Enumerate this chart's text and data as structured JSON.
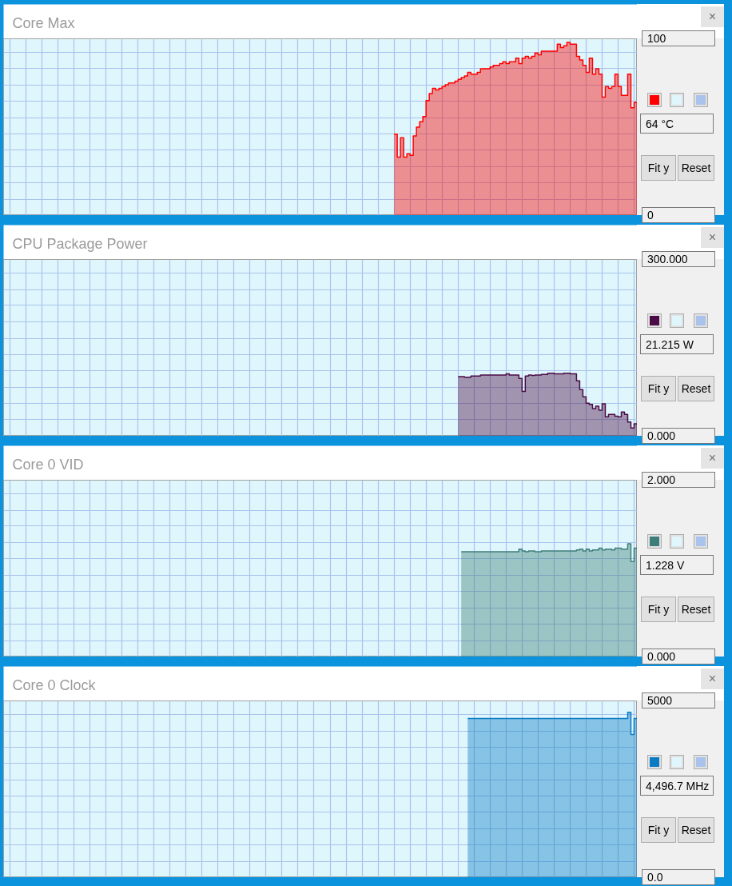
{
  "chart_data": [
    {
      "type": "area",
      "title": "Core Max",
      "tick_labels": "y",
      "grid": true,
      "ylim": [
        0,
        100
      ],
      "yticks": [
        0,
        {
          "value": 9.2,
          "label": null
        },
        {
          "value": 18.5,
          "label": null
        },
        {
          "value": 27.7,
          "label": null
        },
        {
          "value": 36.9,
          "label": null
        },
        {
          "value": 46.2,
          "label": null
        },
        {
          "value": 55.4,
          "label": null
        },
        {
          "value": 64.6,
          "label": null
        },
        {
          "value": 73.8,
          "label": null
        },
        {
          "value": 83.1,
          "label": null
        },
        {
          "value": 92.3,
          "label": null
        },
        100
      ],
      "categories": [
        null,
        null,
        null,
        null,
        null,
        null,
        null,
        null,
        null,
        null,
        null,
        null,
        null,
        null,
        null,
        null,
        null,
        null,
        null,
        null,
        null,
        null,
        null,
        null,
        null,
        null,
        null,
        null,
        null,
        null,
        null,
        null,
        null,
        null,
        null,
        null,
        null,
        null,
        null,
        null,
        null,
        null,
        null,
        null,
        null,
        null,
        null,
        null,
        null,
        null,
        null,
        null,
        null,
        null,
        null,
        null,
        null,
        null,
        null,
        null,
        null,
        null,
        null,
        null,
        null,
        null,
        null,
        null,
        null,
        null,
        null,
        null,
        null,
        null,
        null,
        null,
        null,
        null,
        null,
        null,
        null,
        null,
        null,
        null,
        null,
        null,
        null,
        null,
        null,
        null,
        null,
        null,
        null,
        null,
        null,
        null,
        null,
        null,
        null,
        null,
        null,
        null,
        null,
        null,
        null,
        null,
        null,
        null,
        null,
        null,
        null,
        null,
        null,
        null,
        null,
        null,
        null,
        null,
        null,
        null,
        null,
        null,
        null,
        null,
        null,
        null,
        null,
        null,
        null,
        null,
        null,
        null,
        null,
        null,
        null,
        null,
        null,
        null,
        null,
        null,
        null,
        null,
        null,
        null,
        null,
        null,
        null,
        null,
        null,
        null,
        null,
        null,
        null,
        null,
        null,
        null,
        null,
        null,
        null,
        null,
        null,
        null,
        null,
        null,
        null,
        null,
        null,
        null,
        null,
        null,
        null,
        null,
        null,
        null,
        null,
        null,
        null,
        null,
        null,
        null,
        null,
        null,
        null,
        null,
        null,
        null,
        null,
        null,
        null,
        null,
        null,
        null,
        null,
        null,
        null,
        null,
        null,
        null
      ],
      "series": [
        {
          "color": "#ff0000",
          "values": [
            null,
            null,
            null,
            null,
            null,
            null,
            null,
            null,
            null,
            null,
            null,
            null,
            null,
            null,
            null,
            null,
            null,
            null,
            null,
            null,
            null,
            null,
            null,
            null,
            null,
            null,
            null,
            null,
            null,
            null,
            null,
            null,
            null,
            null,
            null,
            null,
            null,
            null,
            null,
            null,
            null,
            null,
            null,
            null,
            null,
            null,
            null,
            null,
            null,
            null,
            null,
            null,
            null,
            null,
            null,
            null,
            null,
            null,
            null,
            null,
            null,
            null,
            null,
            null,
            null,
            null,
            null,
            null,
            null,
            null,
            null,
            null,
            null,
            null,
            null,
            null,
            null,
            null,
            null,
            null,
            null,
            null,
            null,
            null,
            null,
            null,
            null,
            null,
            null,
            null,
            null,
            null,
            null,
            null,
            null,
            null,
            null,
            null,
            null,
            null,
            null,
            null,
            null,
            null,
            null,
            null,
            null,
            null,
            null,
            null,
            null,
            null,
            null,
            null,
            null,
            null,
            null,
            null,
            null,
            null,
            null,
            null,
            46,
            33,
            44,
            33,
            35,
            34,
            45,
            50,
            53,
            56,
            65,
            69,
            72,
            71,
            72,
            73,
            74,
            75,
            75,
            76,
            77,
            78,
            79,
            81,
            80,
            80,
            81,
            83,
            83,
            83,
            84,
            85,
            85,
            86,
            87,
            86,
            87,
            87,
            89,
            86,
            89,
            90,
            89,
            90,
            92,
            91,
            93,
            93,
            93,
            93,
            93,
            97,
            95,
            96,
            98,
            97,
            97,
            90,
            88,
            85,
            81,
            89,
            80,
            83,
            80,
            67,
            73,
            72,
            73,
            80,
            73,
            68,
            68,
            80,
            61,
            64
          ]
        }
      ],
      "annotations": [
        "64 °C",
        "Fit y",
        "Reset",
        "×"
      ]
    },
    {
      "type": "area",
      "title": "CPU Package Power",
      "tick_labels": "y",
      "grid": true,
      "ylim": [
        0,
        300
      ],
      "yticks": [
        {
          "value": 0,
          "label": "0.000"
        },
        {
          "value": 28,
          "label": null
        },
        {
          "value": 55,
          "label": null
        },
        {
          "value": 83,
          "label": null
        },
        {
          "value": 111,
          "label": null
        },
        {
          "value": 138,
          "label": null
        },
        {
          "value": 166,
          "label": null
        },
        {
          "value": 194,
          "label": null
        },
        {
          "value": 222,
          "label": null
        },
        {
          "value": 249,
          "label": null
        },
        {
          "value": 277,
          "label": null
        },
        {
          "value": 300,
          "label": "300.000"
        }
      ],
      "categories": [
        null,
        null,
        null,
        null,
        null,
        null,
        null,
        null,
        null,
        null,
        null,
        null,
        null,
        null,
        null,
        null,
        null,
        null,
        null,
        null,
        null,
        null,
        null,
        null,
        null,
        null,
        null,
        null,
        null,
        null,
        null,
        null,
        null,
        null,
        null,
        null,
        null,
        null,
        null,
        null,
        null,
        null,
        null,
        null,
        null,
        null,
        null,
        null,
        null,
        null,
        null,
        null,
        null,
        null,
        null,
        null,
        null,
        null,
        null,
        null,
        null,
        null,
        null,
        null,
        null,
        null,
        null,
        null,
        null,
        null,
        null,
        null,
        null,
        null,
        null,
        null,
        null,
        null,
        null,
        null,
        null,
        null,
        null,
        null,
        null,
        null,
        null,
        null,
        null,
        null,
        null,
        null,
        null,
        null,
        null,
        null,
        null,
        null,
        null,
        null,
        null,
        null,
        null,
        null,
        null,
        null,
        null,
        null,
        null,
        null,
        null,
        null,
        null,
        null,
        null,
        null,
        null,
        null,
        null,
        null,
        null,
        null,
        null,
        null,
        null,
        null,
        null,
        null,
        null,
        null,
        null,
        null,
        null,
        null,
        null,
        null,
        null,
        null,
        null,
        null,
        null,
        null,
        null,
        null,
        null,
        null,
        null,
        null,
        null,
        null,
        null,
        null,
        null,
        null,
        null,
        null,
        null,
        null,
        null,
        null,
        null,
        null,
        null,
        null,
        null,
        null,
        null,
        null,
        null,
        null,
        null,
        null,
        null,
        null,
        null,
        null,
        null,
        null,
        null,
        null,
        null,
        null,
        null,
        null,
        null,
        null,
        null,
        null,
        null,
        null,
        null,
        null,
        null,
        null,
        null,
        null,
        null,
        null
      ],
      "series": [
        {
          "color": "#4b0b46",
          "values": [
            null,
            null,
            null,
            null,
            null,
            null,
            null,
            null,
            null,
            null,
            null,
            null,
            null,
            null,
            null,
            null,
            null,
            null,
            null,
            null,
            null,
            null,
            null,
            null,
            null,
            null,
            null,
            null,
            null,
            null,
            null,
            null,
            null,
            null,
            null,
            null,
            null,
            null,
            null,
            null,
            null,
            null,
            null,
            null,
            null,
            null,
            null,
            null,
            null,
            null,
            null,
            null,
            null,
            null,
            null,
            null,
            null,
            null,
            null,
            null,
            null,
            null,
            null,
            null,
            null,
            null,
            null,
            null,
            null,
            null,
            null,
            null,
            null,
            null,
            null,
            null,
            null,
            null,
            null,
            null,
            null,
            null,
            null,
            null,
            null,
            null,
            null,
            null,
            null,
            null,
            null,
            null,
            null,
            null,
            null,
            null,
            null,
            null,
            null,
            null,
            null,
            null,
            null,
            null,
            null,
            null,
            null,
            null,
            null,
            null,
            null,
            null,
            null,
            null,
            null,
            null,
            null,
            null,
            null,
            null,
            null,
            null,
            null,
            null,
            null,
            null,
            null,
            null,
            null,
            null,
            null,
            null,
            null,
            null,
            null,
            null,
            null,
            null,
            null,
            null,
            null,
            null,
            101,
            101,
            100,
            100,
            102,
            102,
            102,
            104,
            104,
            104,
            104,
            104,
            104,
            104,
            104,
            106,
            104,
            104,
            104,
            98,
            76,
            102,
            104,
            103,
            104,
            104,
            105,
            105,
            107,
            107,
            106,
            106,
            106,
            107,
            107,
            106,
            106,
            94,
            79,
            67,
            56,
            54,
            47,
            51,
            44,
            55,
            33,
            37,
            37,
            34,
            33,
            41,
            37,
            24,
            14,
            21
          ]
        }
      ],
      "annotations": [
        "21.215 W",
        "Fit y",
        "Reset",
        "×"
      ]
    },
    {
      "type": "area",
      "title": "Core 0 VID",
      "tick_labels": "y",
      "grid": true,
      "ylim": [
        0,
        2
      ],
      "yticks": [
        {
          "value": 0,
          "label": "0.000"
        },
        {
          "value": 0.18,
          "label": null
        },
        {
          "value": 0.37,
          "label": null
        },
        {
          "value": 0.55,
          "label": null
        },
        {
          "value": 0.74,
          "label": null
        },
        {
          "value": 0.92,
          "label": null
        },
        {
          "value": 1.11,
          "label": null
        },
        {
          "value": 1.29,
          "label": null
        },
        {
          "value": 1.48,
          "label": null
        },
        {
          "value": 1.66,
          "label": null
        },
        {
          "value": 1.85,
          "label": null
        },
        {
          "value": 2,
          "label": "2.000"
        }
      ],
      "categories": [
        null,
        null,
        null,
        null,
        null,
        null,
        null,
        null,
        null,
        null,
        null,
        null,
        null,
        null,
        null,
        null,
        null,
        null,
        null,
        null,
        null,
        null,
        null,
        null,
        null,
        null,
        null,
        null,
        null,
        null,
        null,
        null,
        null,
        null,
        null,
        null,
        null,
        null,
        null,
        null,
        null,
        null,
        null,
        null,
        null,
        null,
        null,
        null,
        null,
        null,
        null,
        null,
        null,
        null,
        null,
        null,
        null,
        null,
        null,
        null,
        null,
        null,
        null,
        null,
        null,
        null,
        null,
        null,
        null,
        null,
        null,
        null,
        null,
        null,
        null,
        null,
        null,
        null,
        null,
        null,
        null,
        null,
        null,
        null,
        null,
        null,
        null,
        null,
        null,
        null,
        null,
        null,
        null,
        null,
        null,
        null,
        null,
        null,
        null,
        null,
        null,
        null,
        null,
        null,
        null,
        null,
        null,
        null,
        null,
        null,
        null,
        null,
        null,
        null,
        null,
        null,
        null,
        null,
        null,
        null,
        null,
        null,
        null,
        null,
        null,
        null,
        null,
        null,
        null,
        null,
        null,
        null,
        null,
        null,
        null,
        null,
        null,
        null,
        null,
        null,
        null,
        null,
        null,
        null,
        null,
        null,
        null,
        null,
        null,
        null,
        null,
        null,
        null,
        null,
        null,
        null,
        null,
        null,
        null,
        null,
        null,
        null,
        null,
        null,
        null,
        null,
        null,
        null,
        null,
        null,
        null,
        null,
        null,
        null,
        null,
        null,
        null,
        null,
        null,
        null,
        null,
        null,
        null,
        null,
        null,
        null,
        null,
        null,
        null,
        null,
        null,
        null,
        null,
        null,
        null,
        null,
        null,
        null
      ],
      "series": [
        {
          "color": "#3e7e7a",
          "values": [
            null,
            null,
            null,
            null,
            null,
            null,
            null,
            null,
            null,
            null,
            null,
            null,
            null,
            null,
            null,
            null,
            null,
            null,
            null,
            null,
            null,
            null,
            null,
            null,
            null,
            null,
            null,
            null,
            null,
            null,
            null,
            null,
            null,
            null,
            null,
            null,
            null,
            null,
            null,
            null,
            null,
            null,
            null,
            null,
            null,
            null,
            null,
            null,
            null,
            null,
            null,
            null,
            null,
            null,
            null,
            null,
            null,
            null,
            null,
            null,
            null,
            null,
            null,
            null,
            null,
            null,
            null,
            null,
            null,
            null,
            null,
            null,
            null,
            null,
            null,
            null,
            null,
            null,
            null,
            null,
            null,
            null,
            null,
            null,
            null,
            null,
            null,
            null,
            null,
            null,
            null,
            null,
            null,
            null,
            null,
            null,
            null,
            null,
            null,
            null,
            null,
            null,
            null,
            null,
            null,
            null,
            null,
            null,
            null,
            null,
            null,
            null,
            null,
            null,
            null,
            null,
            null,
            null,
            null,
            null,
            null,
            null,
            null,
            null,
            null,
            null,
            null,
            null,
            null,
            null,
            null,
            null,
            null,
            null,
            null,
            null,
            null,
            null,
            null,
            null,
            null,
            null,
            null,
            1.19,
            1.19,
            1.19,
            1.19,
            1.19,
            1.19,
            1.19,
            1.19,
            1.19,
            1.19,
            1.19,
            1.19,
            1.19,
            1.19,
            1.19,
            1.19,
            1.19,
            1.19,
            1.22,
            1.2,
            1.19,
            1.2,
            1.2,
            1.19,
            1.19,
            1.2,
            1.2,
            1.2,
            1.2,
            1.2,
            1.2,
            1.2,
            1.2,
            1.2,
            1.2,
            1.2,
            1.21,
            1.22,
            1.2,
            1.22,
            1.2,
            1.21,
            1.21,
            1.23,
            1.21,
            1.22,
            1.22,
            1.21,
            1.23,
            1.23,
            1.22,
            1.22,
            1.28,
            1.08,
            1.23
          ]
        }
      ],
      "annotations": [
        "1.228 V",
        "Fit y",
        "Reset",
        "×"
      ]
    },
    {
      "type": "area",
      "title": "Core 0 Clock",
      "tick_labels": "y",
      "grid": true,
      "ylim": [
        0,
        5000
      ],
      "yticks": [
        {
          "value": 0,
          "label": "0.0"
        },
        {
          "value": 460,
          "label": null
        },
        {
          "value": 920,
          "label": null
        },
        {
          "value": 1380,
          "label": null
        },
        {
          "value": 1850,
          "label": null
        },
        {
          "value": 2310,
          "label": null
        },
        {
          "value": 2770,
          "label": null
        },
        {
          "value": 3230,
          "label": null
        },
        {
          "value": 3690,
          "label": null
        },
        {
          "value": 4150,
          "label": null
        },
        {
          "value": 4620,
          "label": null
        },
        5000
      ],
      "categories": [
        null,
        null,
        null,
        null,
        null,
        null,
        null,
        null,
        null,
        null,
        null,
        null,
        null,
        null,
        null,
        null,
        null,
        null,
        null,
        null,
        null,
        null,
        null,
        null,
        null,
        null,
        null,
        null,
        null,
        null,
        null,
        null,
        null,
        null,
        null,
        null,
        null,
        null,
        null,
        null,
        null,
        null,
        null,
        null,
        null,
        null,
        null,
        null,
        null,
        null,
        null,
        null,
        null,
        null,
        null,
        null,
        null,
        null,
        null,
        null,
        null,
        null,
        null,
        null,
        null,
        null,
        null,
        null,
        null,
        null,
        null,
        null,
        null,
        null,
        null,
        null,
        null,
        null,
        null,
        null,
        null,
        null,
        null,
        null,
        null,
        null,
        null,
        null,
        null,
        null,
        null,
        null,
        null,
        null,
        null,
        null,
        null,
        null,
        null,
        null,
        null,
        null,
        null,
        null,
        null,
        null,
        null,
        null,
        null,
        null,
        null,
        null,
        null,
        null,
        null,
        null,
        null,
        null,
        null,
        null,
        null,
        null,
        null,
        null,
        null,
        null,
        null,
        null,
        null,
        null,
        null,
        null,
        null,
        null,
        null,
        null,
        null,
        null,
        null,
        null,
        null,
        null,
        null,
        null,
        null,
        null,
        null,
        null,
        null,
        null,
        null,
        null,
        null,
        null,
        null,
        null,
        null,
        null,
        null,
        null,
        null,
        null,
        null,
        null,
        null,
        null,
        null,
        null,
        null,
        null,
        null,
        null,
        null,
        null,
        null,
        null,
        null,
        null,
        null,
        null,
        null,
        null,
        null,
        null,
        null,
        null,
        null,
        null,
        null,
        null,
        null,
        null,
        null,
        null,
        null,
        null,
        null,
        null
      ],
      "series": [
        {
          "color": "#0b7bc4",
          "values": [
            null,
            null,
            null,
            null,
            null,
            null,
            null,
            null,
            null,
            null,
            null,
            null,
            null,
            null,
            null,
            null,
            null,
            null,
            null,
            null,
            null,
            null,
            null,
            null,
            null,
            null,
            null,
            null,
            null,
            null,
            null,
            null,
            null,
            null,
            null,
            null,
            null,
            null,
            null,
            null,
            null,
            null,
            null,
            null,
            null,
            null,
            null,
            null,
            null,
            null,
            null,
            null,
            null,
            null,
            null,
            null,
            null,
            null,
            null,
            null,
            null,
            null,
            null,
            null,
            null,
            null,
            null,
            null,
            null,
            null,
            null,
            null,
            null,
            null,
            null,
            null,
            null,
            null,
            null,
            null,
            null,
            null,
            null,
            null,
            null,
            null,
            null,
            null,
            null,
            null,
            null,
            null,
            null,
            null,
            null,
            null,
            null,
            null,
            null,
            null,
            null,
            null,
            null,
            null,
            null,
            null,
            null,
            null,
            null,
            null,
            null,
            null,
            null,
            null,
            null,
            null,
            null,
            null,
            null,
            null,
            null,
            null,
            null,
            null,
            null,
            null,
            null,
            null,
            null,
            null,
            null,
            null,
            null,
            null,
            null,
            null,
            null,
            null,
            null,
            null,
            null,
            null,
            null,
            null,
            null,
            4500,
            4500,
            4500,
            4500,
            4500,
            4500,
            4500,
            4500,
            4500,
            4500,
            4500,
            4500,
            4500,
            4500,
            4500,
            4500,
            4500,
            4500,
            4500,
            4500,
            4500,
            4500,
            4500,
            4500,
            4500,
            4500,
            4500,
            4500,
            4500,
            4500,
            4500,
            4500,
            4500,
            4500,
            4500,
            4500,
            4500,
            4500,
            4500,
            4500,
            4500,
            4500,
            4500,
            4500,
            4500,
            4500,
            4500,
            4500,
            4500,
            4500,
            4680,
            4050,
            4500
          ]
        }
      ],
      "annotations": [
        "4,496.7 MHz",
        "Fit y",
        "Reset",
        "×"
      ]
    }
  ]
}
